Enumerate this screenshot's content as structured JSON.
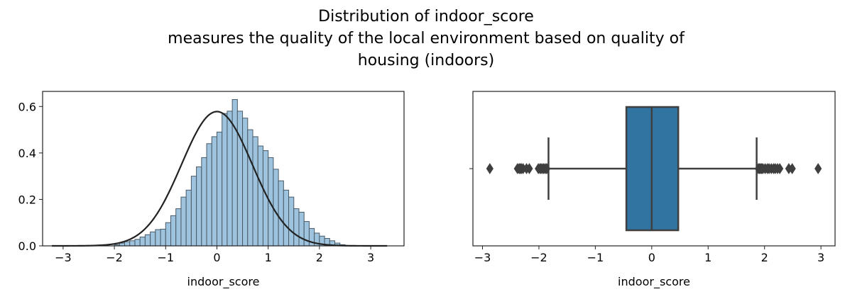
{
  "figure": {
    "title_lines": [
      "Distribution of indoor_score",
      "measures the quality of the local environment based on quality of",
      "housing (indoors)"
    ]
  },
  "chart_data": [
    {
      "type": "bar",
      "subtype": "histogram_with_kde",
      "xlabel": "indoor_score",
      "ylabel": "",
      "xlim": [
        -3.4,
        3.65
      ],
      "ylim": [
        0,
        0.665
      ],
      "xticks": [
        -3,
        -2,
        -1,
        0,
        1,
        2,
        3
      ],
      "yticks": [
        0.0,
        0.2,
        0.4,
        0.6
      ],
      "ytick_labels": [
        "0.0",
        "0.2",
        "0.4",
        "0.6"
      ],
      "bin_edges_start": -2.0,
      "bin_width": 0.1,
      "values": [
        0.005,
        0.012,
        0.018,
        0.022,
        0.028,
        0.038,
        0.048,
        0.06,
        0.07,
        0.072,
        0.1,
        0.13,
        0.16,
        0.21,
        0.24,
        0.3,
        0.34,
        0.38,
        0.44,
        0.47,
        0.49,
        0.57,
        0.58,
        0.63,
        0.58,
        0.55,
        0.5,
        0.47,
        0.43,
        0.41,
        0.38,
        0.33,
        0.28,
        0.24,
        0.21,
        0.16,
        0.145,
        0.105,
        0.075,
        0.055,
        0.042,
        0.032,
        0.022,
        0.012,
        0.005
      ],
      "kde": {
        "mean": 0.0,
        "std": 0.69,
        "x_range": [
          -3.22,
          3.32
        ]
      },
      "colors": {
        "bars": "#9dc3de",
        "bar_edge": "#4a5a66",
        "kde": "#222222"
      }
    },
    {
      "type": "boxplot",
      "xlabel": "indoor_score",
      "xlim": [
        -3.17,
        3.25
      ],
      "xticks": [
        -3,
        -2,
        -1,
        0,
        1,
        2,
        3
      ],
      "q1": -0.45,
      "median": 0.0,
      "q3": 0.47,
      "whisker_low": -1.83,
      "whisker_high": 1.86,
      "outliers": [
        -2.87,
        -2.38,
        -2.35,
        -2.33,
        -2.31,
        -2.28,
        -2.22,
        -2.17,
        -2.01,
        -1.98,
        -1.96,
        -1.93,
        -1.91,
        -1.88,
        -1.86,
        1.89,
        1.91,
        1.93,
        1.95,
        1.97,
        2.01,
        2.05,
        2.08,
        2.12,
        2.16,
        2.19,
        2.23,
        2.27,
        2.43,
        2.49,
        2.95
      ],
      "colors": {
        "box": "#3274a1",
        "lines": "#3f3f3f"
      }
    }
  ]
}
